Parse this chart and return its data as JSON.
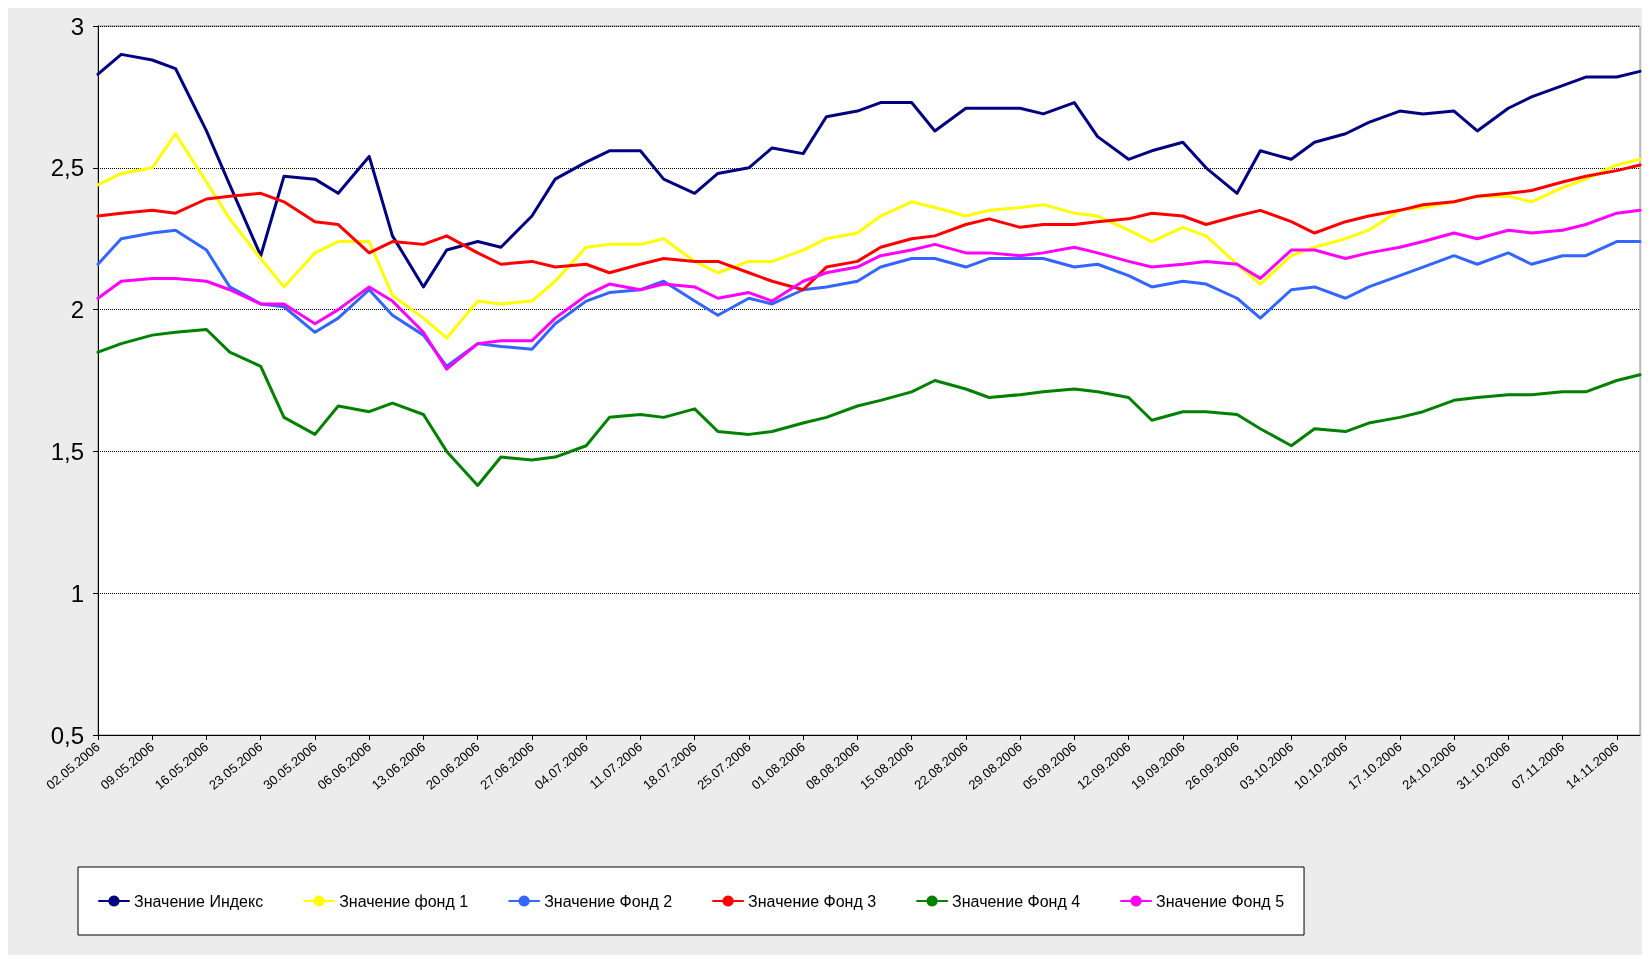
{
  "chart_data": {
    "type": "line",
    "x": [
      "2006-05-02",
      "2006-05-05",
      "2006-05-09",
      "2006-05-12",
      "2006-05-16",
      "2006-05-19",
      "2006-05-23",
      "2006-05-26",
      "2006-05-30",
      "2006-06-02",
      "2006-06-06",
      "2006-06-09",
      "2006-06-13",
      "2006-06-16",
      "2006-06-20",
      "2006-06-23",
      "2006-06-27",
      "2006-06-30",
      "2006-07-04",
      "2006-07-07",
      "2006-07-11",
      "2006-07-14",
      "2006-07-18",
      "2006-07-21",
      "2006-07-25",
      "2006-07-28",
      "2006-08-01",
      "2006-08-04",
      "2006-08-08",
      "2006-08-11",
      "2006-08-15",
      "2006-08-18",
      "2006-08-22",
      "2006-08-25",
      "2006-08-29",
      "2006-09-01",
      "2006-09-05",
      "2006-09-08",
      "2006-09-12",
      "2006-09-15",
      "2006-09-19",
      "2006-09-22",
      "2006-09-26",
      "2006-09-29",
      "2006-10-03",
      "2006-10-06",
      "2006-10-10",
      "2006-10-13",
      "2006-10-17",
      "2006-10-20",
      "2006-10-24",
      "2006-10-27",
      "2006-10-31",
      "2006-11-03",
      "2006-11-07",
      "2006-11-10",
      "2006-11-14",
      "2006-11-17"
    ],
    "series": [
      {
        "name": "Значение Индекс",
        "color": "#000080",
        "values": [
          2.83,
          2.9,
          2.88,
          2.85,
          2.63,
          2.44,
          2.19,
          2.47,
          2.46,
          2.41,
          2.54,
          2.26,
          2.08,
          2.21,
          2.24,
          2.22,
          2.33,
          2.46,
          2.52,
          2.56,
          2.56,
          2.46,
          2.41,
          2.48,
          2.5,
          2.57,
          2.55,
          2.68,
          2.7,
          2.73,
          2.73,
          2.63,
          2.71,
          2.71,
          2.71,
          2.69,
          2.73,
          2.61,
          2.53,
          2.56,
          2.59,
          2.5,
          2.41,
          2.56,
          2.53,
          2.59,
          2.62,
          2.66,
          2.7,
          2.69,
          2.7,
          2.63,
          2.71,
          2.75,
          2.79,
          2.82,
          2.82,
          2.84
        ]
      },
      {
        "name": "Значение фонд 1",
        "color": "#ffff00",
        "values": [
          2.44,
          2.48,
          2.5,
          2.62,
          2.45,
          2.32,
          2.18,
          2.08,
          2.2,
          2.24,
          2.24,
          2.05,
          1.97,
          1.9,
          2.03,
          2.02,
          2.03,
          2.1,
          2.22,
          2.23,
          2.23,
          2.25,
          2.17,
          2.13,
          2.17,
          2.17,
          2.21,
          2.25,
          2.27,
          2.33,
          2.38,
          2.36,
          2.33,
          2.35,
          2.36,
          2.37,
          2.34,
          2.33,
          2.28,
          2.24,
          2.29,
          2.26,
          2.16,
          2.09,
          2.19,
          2.22,
          2.25,
          2.28,
          2.35,
          2.36,
          2.38,
          2.4,
          2.4,
          2.38,
          2.43,
          2.46,
          2.51,
          2.53
        ]
      },
      {
        "name": "Значение Фонд 2",
        "color": "#3366ff",
        "values": [
          2.16,
          2.25,
          2.27,
          2.28,
          2.21,
          2.08,
          2.02,
          2.01,
          1.92,
          1.97,
          2.07,
          1.98,
          1.91,
          1.8,
          1.88,
          1.87,
          1.86,
          1.95,
          2.03,
          2.06,
          2.07,
          2.1,
          2.03,
          1.98,
          2.04,
          2.02,
          2.07,
          2.08,
          2.1,
          2.15,
          2.18,
          2.18,
          2.15,
          2.18,
          2.18,
          2.18,
          2.15,
          2.16,
          2.12,
          2.08,
          2.1,
          2.09,
          2.04,
          1.97,
          2.07,
          2.08,
          2.04,
          2.08,
          2.12,
          2.15,
          2.19,
          2.16,
          2.2,
          2.16,
          2.19,
          2.19,
          2.24,
          2.24
        ]
      },
      {
        "name": "Значение Фонд 3",
        "color": "#ff0000",
        "values": [
          2.33,
          2.34,
          2.35,
          2.34,
          2.39,
          2.4,
          2.41,
          2.38,
          2.31,
          2.3,
          2.2,
          2.24,
          2.23,
          2.26,
          2.2,
          2.16,
          2.17,
          2.15,
          2.16,
          2.13,
          2.16,
          2.18,
          2.17,
          2.17,
          2.13,
          2.1,
          2.07,
          2.15,
          2.17,
          2.22,
          2.25,
          2.26,
          2.3,
          2.32,
          2.29,
          2.3,
          2.3,
          2.31,
          2.32,
          2.34,
          2.33,
          2.3,
          2.33,
          2.35,
          2.31,
          2.27,
          2.31,
          2.33,
          2.35,
          2.37,
          2.38,
          2.4,
          2.41,
          2.42,
          2.45,
          2.47,
          2.49,
          2.51
        ]
      },
      {
        "name": "Значение Фонд 4",
        "color": "#008000",
        "values": [
          1.85,
          1.88,
          1.91,
          1.92,
          1.93,
          1.85,
          1.8,
          1.62,
          1.56,
          1.66,
          1.64,
          1.67,
          1.63,
          1.5,
          1.38,
          1.48,
          1.47,
          1.48,
          1.52,
          1.62,
          1.63,
          1.62,
          1.65,
          1.57,
          1.56,
          1.57,
          1.6,
          1.62,
          1.66,
          1.68,
          1.71,
          1.75,
          1.72,
          1.69,
          1.7,
          1.71,
          1.72,
          1.71,
          1.69,
          1.61,
          1.64,
          1.64,
          1.63,
          1.58,
          1.52,
          1.58,
          1.57,
          1.6,
          1.62,
          1.64,
          1.68,
          1.69,
          1.7,
          1.7,
          1.71,
          1.71,
          1.75,
          1.77
        ]
      },
      {
        "name": "Значение Фонд 5",
        "color": "#ff00ff",
        "values": [
          2.04,
          2.1,
          2.11,
          2.11,
          2.1,
          2.07,
          2.02,
          2.02,
          1.95,
          2.0,
          2.08,
          2.03,
          1.92,
          1.79,
          1.88,
          1.89,
          1.89,
          1.97,
          2.05,
          2.09,
          2.07,
          2.09,
          2.08,
          2.04,
          2.06,
          2.03,
          2.1,
          2.13,
          2.15,
          2.19,
          2.21,
          2.23,
          2.2,
          2.2,
          2.19,
          2.2,
          2.22,
          2.2,
          2.17,
          2.15,
          2.16,
          2.17,
          2.16,
          2.11,
          2.21,
          2.21,
          2.18,
          2.2,
          2.22,
          2.24,
          2.27,
          2.25,
          2.28,
          2.27,
          2.28,
          2.3,
          2.34,
          2.35
        ]
      }
    ],
    "xlim": [
      "2006-05-02",
      "2006-11-17"
    ],
    "xticks": [
      {
        "value": "2006-05-02",
        "label": "02.05.2006"
      },
      {
        "value": "2006-05-09",
        "label": "09.05.2006"
      },
      {
        "value": "2006-05-16",
        "label": "16.05.2006"
      },
      {
        "value": "2006-05-23",
        "label": "23.05.2006"
      },
      {
        "value": "2006-05-30",
        "label": "30.05.2006"
      },
      {
        "value": "2006-06-06",
        "label": "06.06.2006"
      },
      {
        "value": "2006-06-13",
        "label": "13.06.2006"
      },
      {
        "value": "2006-06-20",
        "label": "20.06.2006"
      },
      {
        "value": "2006-06-27",
        "label": "27.06.2006"
      },
      {
        "value": "2006-07-04",
        "label": "04.07.2006"
      },
      {
        "value": "2006-07-11",
        "label": "11.07.2006"
      },
      {
        "value": "2006-07-18",
        "label": "18.07.2006"
      },
      {
        "value": "2006-07-25",
        "label": "25.07.2006"
      },
      {
        "value": "2006-08-01",
        "label": "01.08.2006"
      },
      {
        "value": "2006-08-08",
        "label": "08.08.2006"
      },
      {
        "value": "2006-08-15",
        "label": "15.08.2006"
      },
      {
        "value": "2006-08-22",
        "label": "22.08.2006"
      },
      {
        "value": "2006-08-29",
        "label": "29.08.2006"
      },
      {
        "value": "2006-09-05",
        "label": "05.09.2006"
      },
      {
        "value": "2006-09-12",
        "label": "12.09.2006"
      },
      {
        "value": "2006-09-19",
        "label": "19.09.2006"
      },
      {
        "value": "2006-09-26",
        "label": "26.09.2006"
      },
      {
        "value": "2006-10-03",
        "label": "03.10.2006"
      },
      {
        "value": "2006-10-10",
        "label": "10.10.2006"
      },
      {
        "value": "2006-10-17",
        "label": "17.10.2006"
      },
      {
        "value": "2006-10-24",
        "label": "24.10.2006"
      },
      {
        "value": "2006-10-31",
        "label": "31.10.2006"
      },
      {
        "value": "2006-11-07",
        "label": "07.11.2006"
      },
      {
        "value": "2006-11-14",
        "label": "14.11.2006"
      }
    ],
    "ylim": [
      0.5,
      3
    ],
    "yticks": [
      {
        "value": 0.5,
        "label": "0,5"
      },
      {
        "value": 1,
        "label": "1"
      },
      {
        "value": 1.5,
        "label": "1,5"
      },
      {
        "value": 2,
        "label": "2"
      },
      {
        "value": 2.5,
        "label": "2,5"
      },
      {
        "value": 3,
        "label": "3"
      }
    ],
    "grid": "y",
    "legend": "bottom",
    "marker": "none",
    "line_style": "solid"
  }
}
